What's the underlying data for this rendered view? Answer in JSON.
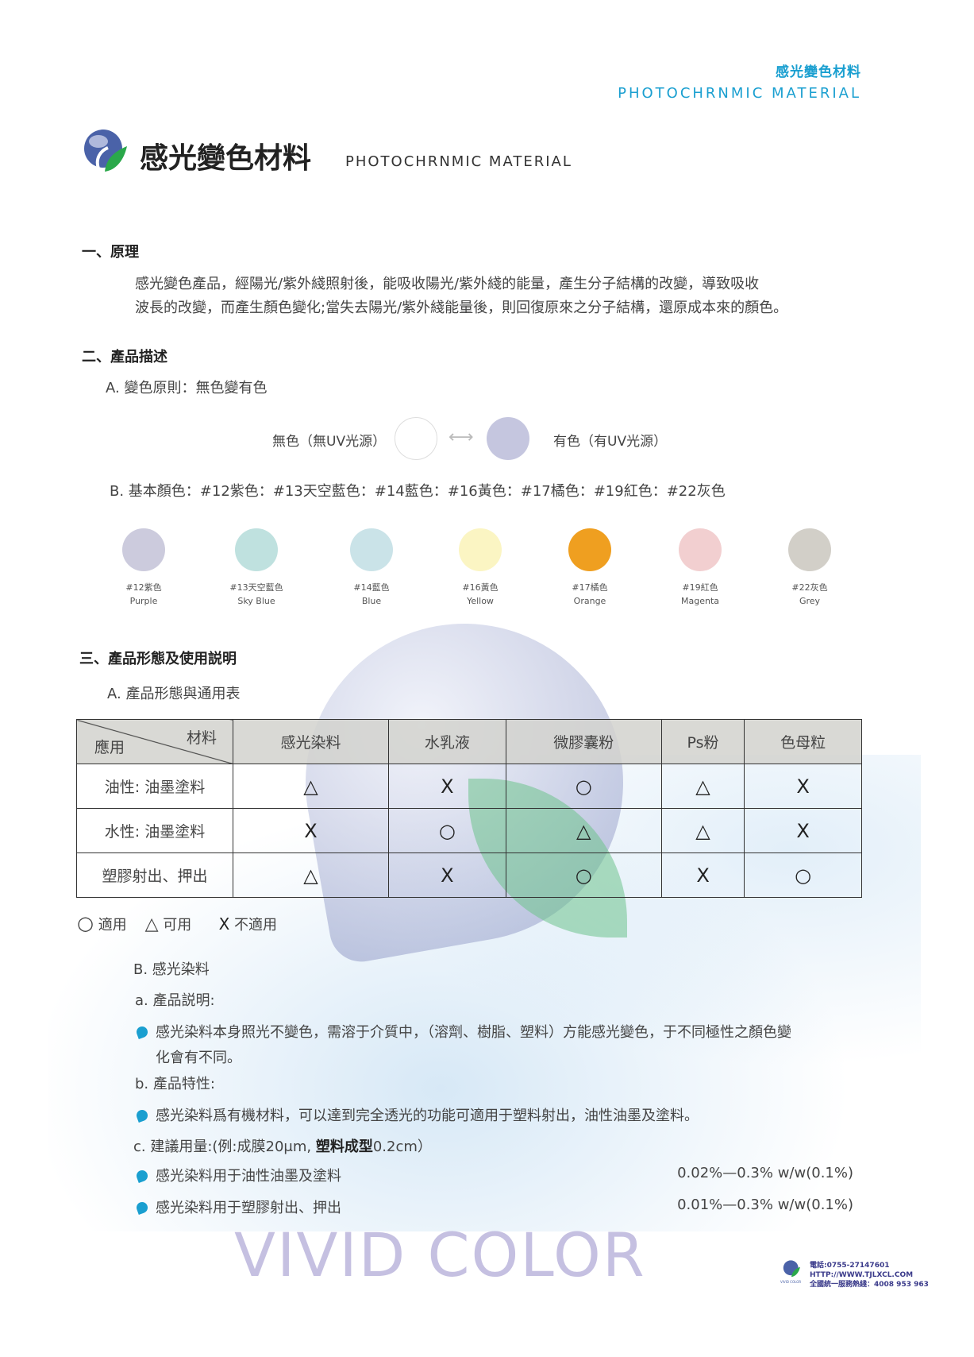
{
  "header": {
    "cn": "感光變色材料",
    "en": "PHOTOCHRNMIC MATERIAL"
  },
  "title": {
    "cn": "感光變色材料",
    "en": "PHOTOCHRNMIC MATERIAL"
  },
  "section1": {
    "heading": "一、原理",
    "lines": [
      "感光變色產品，經陽光/紫外綫照射後，能吸收陽光/紫外綫的能量，產生分子結構的改變，導致吸收",
      "波長的改變，而產生顏色變化;當失去陽光/紫外綫能量後，則回復原來之分子結構，還原成本來的顏色。"
    ]
  },
  "section2": {
    "heading": "二、產品描述",
    "a": "A.  變色原則：無色變有色",
    "before": "無色（無UV光源）",
    "after": "有色（有UV光源）",
    "after_color": "#c5c6df",
    "b": "B.  基本顏色：#12紫色：#13天空藍色：#14藍色：#16黃色：#17橘色：#19紅色：#22灰色",
    "swatches": [
      {
        "code": "#12紫色",
        "name": "Purple",
        "color": "#cccbdd"
      },
      {
        "code": "#13天空藍色",
        "name": "Sky Blue",
        "color": "#bfe1df"
      },
      {
        "code": "#14藍色",
        "name": "Blue",
        "color": "#cae3e8"
      },
      {
        "code": "#16黃色",
        "name": "Yellow",
        "color": "#fbf5c3"
      },
      {
        "code": "#17橘色",
        "name": "Orange",
        "color": "#ef9f20"
      },
      {
        "code": "#19紅色",
        "name": "Magenta",
        "color": "#f2cfd0"
      },
      {
        "code": "#22灰色",
        "name": "Grey",
        "color": "#d2cfc8"
      }
    ]
  },
  "section3": {
    "heading": "三、產品形態及使用説明",
    "a": "A.  產品形態與通用表",
    "table": {
      "corner_top": "材料",
      "corner_bottom": "應用",
      "columns": [
        "感光染料",
        "水乳液",
        "微膠囊粉",
        "Ps粉",
        "色母粒"
      ],
      "rows": [
        {
          "label": "油性: 油墨塗料",
          "cells": [
            "△",
            "X",
            "○",
            "△",
            "X"
          ]
        },
        {
          "label": "水性: 油墨塗料",
          "cells": [
            "X",
            "○",
            "△",
            "△",
            "X"
          ]
        },
        {
          "label": "塑膠射出、押出",
          "cells": [
            "△",
            "X",
            "○",
            "X",
            "○"
          ]
        }
      ]
    },
    "legend": [
      {
        "sym": "○",
        "text": "適用"
      },
      {
        "sym": "△",
        "text": "可用"
      },
      {
        "sym": "X",
        "text": "不適用"
      }
    ],
    "b": "B.  感光染料",
    "a_label": "a.  產品説明:",
    "a_text1": "感光染料本身照光不變色，需溶于介質中，（溶劑、樹脂、塑料）方能感光變色，于不同極性之顏色變",
    "a_text2": "化會有不同。",
    "b_label": "b.  產品特性:",
    "b_text": "感光染料爲有機材料，可以達到完全透光的功能可適用于塑料射出，油性油墨及塗料。",
    "c_label": "c.  建議用量:(例:成膜20μm,",
    "c_bold": "塑料成型",
    "c_rest": "0.2cm）",
    "usage": [
      {
        "text": "感光染料用于油性油墨及塗料",
        "value": "0.02%—0.3% w/w(0.1%)"
      },
      {
        "text": "感光染料用于塑膠射出、押出",
        "value": "0.01%—0.3% w/w(0.1%)"
      }
    ]
  },
  "watermark": "VIVID COLOR",
  "footer": {
    "tel": "電話:0755-27147601",
    "url": "HTTP://WWW.TJLXCL.COM",
    "hotline": "全國統一服務熱綫：4008 953 963",
    "logo_text": "VIVID COLOR"
  },
  "colors": {
    "accent": "#1a9fd0",
    "logo_blue": "#4a62a8",
    "logo_green": "#2aa84a"
  }
}
